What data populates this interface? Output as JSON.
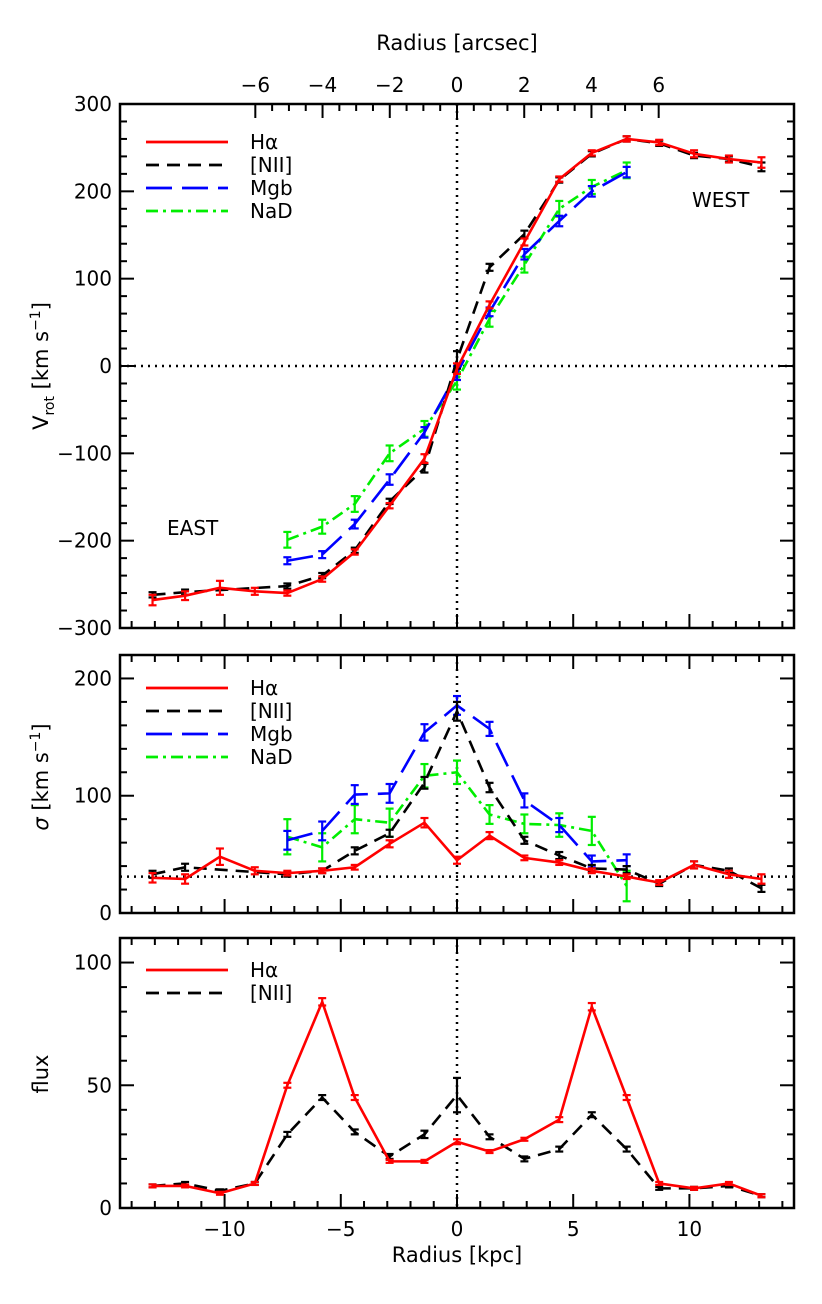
{
  "colors": {
    "Ha": "#ff0000",
    "NII": "#000000",
    "Mgb": "#0000ff",
    "NaD": "#00ee00",
    "axis": "#000000"
  },
  "top_axis": {
    "label": "Radius [arcsec]",
    "ticks": [
      "−6",
      "−4",
      "−2",
      "0",
      "2",
      "4",
      "6"
    ],
    "tick_values": [
      -6,
      -4,
      -2,
      0,
      2,
      4,
      6
    ]
  },
  "x_axis": {
    "label": "Radius [kpc]",
    "ticks": [
      "−10",
      "−5",
      "0",
      "5",
      "10"
    ],
    "tick_values": [
      -10,
      -5,
      0,
      5,
      10
    ],
    "xlim": [
      -14.5,
      14.5
    ]
  },
  "chart_data": [
    {
      "type": "line",
      "panel": "rotation",
      "ylabel_main": "V",
      "ylabel_sub": "rot",
      "ylabel_units": " [km s",
      "ylabel_exp": "−1",
      "ylabel_close": "]",
      "ylim": [
        -300,
        300
      ],
      "yticks": [
        "−300",
        "−200",
        "−100",
        "0",
        "100",
        "200",
        "300"
      ],
      "ytick_values": [
        -300,
        -200,
        -100,
        0,
        100,
        200,
        300
      ],
      "annotations": {
        "east": "EAST",
        "west": "WEST"
      },
      "hline": 0,
      "vline": 0,
      "legend": {
        "placement": "top-left",
        "entries": [
          "Hα",
          "[NII]",
          "Mgb",
          "NaD"
        ]
      },
      "series": [
        {
          "name": "Hα",
          "key": "Ha",
          "x": [
            -13.1,
            -11.7,
            -10.2,
            -8.7,
            -7.3,
            -5.8,
            -4.4,
            -2.9,
            -1.4,
            0,
            1.4,
            2.9,
            4.4,
            5.8,
            7.3,
            8.7,
            10.2,
            11.7,
            13.1
          ],
          "y": [
            -268,
            -263,
            -254,
            -258,
            -260,
            -244,
            -213,
            -160,
            -106,
            -3,
            70,
            142,
            214,
            244,
            260,
            256,
            243,
            237,
            233
          ],
          "err": [
            6,
            5,
            8,
            4,
            3,
            3,
            3,
            3,
            5,
            6,
            4,
            4,
            3,
            3,
            3,
            3,
            4,
            4,
            6
          ]
        },
        {
          "name": "[NII]",
          "key": "NII",
          "x": [
            -13.1,
            -11.7,
            -7.3,
            -5.8,
            -4.4,
            -2.9,
            -1.4,
            0,
            1.4,
            2.9,
            4.4,
            5.8,
            7.3,
            8.7,
            10.2,
            11.7,
            13.1
          ],
          "y": [
            -262,
            -259,
            -252,
            -240,
            -211,
            -155,
            -117,
            7,
            113,
            151,
            213,
            243,
            260,
            255,
            241,
            237,
            228
          ],
          "err": [
            3,
            3,
            3,
            3,
            3,
            3,
            5,
            10,
            4,
            4,
            3,
            3,
            3,
            3,
            3,
            3,
            5
          ]
        },
        {
          "name": "Mgb",
          "key": "Mgb",
          "x": [
            -7.3,
            -5.8,
            -4.4,
            -2.9,
            -1.4,
            0,
            1.4,
            2.9,
            4.4,
            5.8,
            7.3
          ],
          "y": [
            -223,
            -216,
            -181,
            -130,
            -76,
            -8,
            62,
            128,
            166,
            200,
            222
          ],
          "err": [
            4,
            4,
            5,
            6,
            6,
            8,
            5,
            6,
            6,
            6,
            6
          ]
        },
        {
          "name": "NaD",
          "key": "NaD",
          "x": [
            -7.3,
            -5.8,
            -4.4,
            -2.9,
            -1.4,
            0,
            1.4,
            2.9,
            4.4,
            5.8,
            7.3
          ],
          "y": [
            -199,
            -184,
            -158,
            -100,
            -72,
            -17,
            54,
            116,
            180,
            205,
            224
          ],
          "err": [
            9,
            8,
            9,
            9,
            9,
            10,
            9,
            9,
            9,
            8,
            9
          ]
        }
      ]
    },
    {
      "type": "line",
      "panel": "dispersion",
      "ylabel_main": "σ",
      "ylabel_units": " [km s",
      "ylabel_exp": "−1",
      "ylabel_close": "]",
      "ylim": [
        0,
        220
      ],
      "yticks": [
        "0",
        "100",
        "200"
      ],
      "ytick_values": [
        0,
        100,
        200
      ],
      "hline": 31,
      "vline": 0,
      "legend": {
        "placement": "top-left",
        "entries": [
          "Hα",
          "[NII]",
          "Mgb",
          "NaD"
        ]
      },
      "series": [
        {
          "name": "Hα",
          "key": "Ha",
          "x": [
            -13.1,
            -11.7,
            -10.2,
            -8.7,
            -7.3,
            -5.8,
            -4.4,
            -2.9,
            -1.4,
            0,
            1.4,
            2.9,
            4.4,
            5.8,
            7.3,
            8.7,
            10.2,
            11.7,
            13.1
          ],
          "y": [
            30,
            29,
            48,
            36,
            34,
            36,
            39,
            59,
            77,
            45,
            66,
            47,
            43,
            36,
            31,
            26,
            41,
            33,
            29
          ],
          "err": [
            4,
            4,
            7,
            3,
            2,
            2,
            2,
            3,
            4,
            3,
            3,
            2,
            2,
            2,
            2,
            2,
            3,
            3,
            4
          ]
        },
        {
          "name": "[NII]",
          "key": "NII",
          "x": [
            -13.1,
            -11.7,
            -7.3,
            -5.8,
            -4.4,
            -2.9,
            -1.4,
            0,
            1.4,
            2.9,
            4.4,
            5.8,
            7.3,
            8.7,
            10.2,
            11.7,
            13.1
          ],
          "y": [
            33,
            39,
            33,
            36,
            53,
            68,
            111,
            172,
            107,
            62,
            49,
            38,
            37,
            25,
            41,
            36,
            21
          ],
          "err": [
            3,
            3,
            2,
            2,
            3,
            3,
            5,
            8,
            4,
            3,
            3,
            3,
            3,
            2,
            3,
            2,
            3
          ]
        },
        {
          "name": "Mgb",
          "key": "Mgb",
          "x": [
            -7.3,
            -5.8,
            -4.4,
            -2.9,
            -1.4,
            0,
            1.4,
            2.9,
            4.4,
            5.8,
            7.3
          ],
          "y": [
            62,
            70,
            101,
            102,
            154,
            177,
            157,
            96,
            75,
            44,
            45
          ],
          "err": [
            8,
            8,
            8,
            8,
            7,
            8,
            6,
            6,
            6,
            5,
            5
          ]
        },
        {
          "name": "NaD",
          "key": "NaD",
          "x": [
            -7.3,
            -5.8,
            -4.4,
            -2.9,
            -1.4,
            0,
            1.4,
            2.9,
            4.4,
            5.8,
            7.3
          ],
          "y": [
            65,
            56,
            80,
            77,
            117,
            120,
            84,
            76,
            75,
            70,
            23
          ],
          "err": [
            15,
            12,
            12,
            12,
            10,
            10,
            8,
            8,
            10,
            12,
            13
          ]
        }
      ]
    },
    {
      "type": "line",
      "panel": "flux",
      "ylabel_main": "flux",
      "ylim": [
        0,
        110
      ],
      "yticks": [
        "0",
        "50",
        "100"
      ],
      "ytick_values": [
        0,
        50,
        100
      ],
      "vline": 0,
      "legend": {
        "placement": "top-left",
        "entries": [
          "Hα",
          "[NII]"
        ]
      },
      "series": [
        {
          "name": "Hα",
          "key": "Ha",
          "x": [
            -13.1,
            -11.7,
            -10.2,
            -8.7,
            -7.3,
            -5.8,
            -4.4,
            -2.9,
            -1.4,
            0,
            1.4,
            2.9,
            4.4,
            5.8,
            7.3,
            8.7,
            10.2,
            11.7,
            13.1
          ],
          "y": [
            9,
            9,
            6,
            10,
            50,
            84,
            45,
            19,
            19,
            27,
            23,
            28,
            36,
            82,
            45,
            10,
            8,
            10,
            5
          ],
          "err": [
            0.6,
            0.6,
            0.6,
            0.6,
            1,
            1.5,
            1,
            0.6,
            0.6,
            1,
            0.6,
            0.6,
            1,
            1.5,
            1,
            0.6,
            0.6,
            0.6,
            0.6
          ]
        },
        {
          "name": "[NII]",
          "key": "NII",
          "x": [
            -13.1,
            -11.7,
            -10.2,
            -8.7,
            -7.3,
            -5.8,
            -4.4,
            -2.9,
            -1.4,
            0,
            1.4,
            2.9,
            4.4,
            5.8,
            7.3,
            8.7,
            10.2,
            11.7,
            13.1
          ],
          "y": [
            9,
            10,
            7,
            10,
            30,
            45,
            31,
            21,
            30,
            46,
            29,
            20,
            24,
            38,
            24,
            8,
            8,
            9,
            5
          ],
          "err": [
            0.6,
            0.6,
            0.6,
            0.6,
            1,
            1,
            1,
            1,
            1.5,
            7,
            1,
            1,
            1,
            1,
            1,
            0.6,
            0.6,
            0.6,
            0.6
          ]
        }
      ]
    }
  ]
}
